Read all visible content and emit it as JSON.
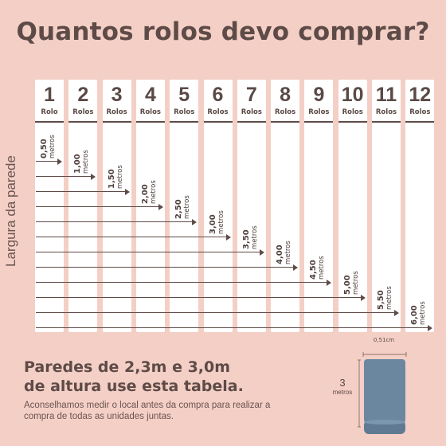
{
  "title": "Quantos rolos devo comprar?",
  "side_label": "Largura da parede",
  "columns": [
    {
      "num": "1",
      "unit": "Rolo"
    },
    {
      "num": "2",
      "unit": "Rolos"
    },
    {
      "num": "3",
      "unit": "Rolos"
    },
    {
      "num": "4",
      "unit": "Rolos"
    },
    {
      "num": "5",
      "unit": "Rolos"
    },
    {
      "num": "6",
      "unit": "Rolos"
    },
    {
      "num": "7",
      "unit": "Rolos"
    },
    {
      "num": "8",
      "unit": "Rolos"
    },
    {
      "num": "9",
      "unit": "Rolos"
    },
    {
      "num": "10",
      "unit": "Rolos"
    },
    {
      "num": "11",
      "unit": "Rolos"
    },
    {
      "num": "12",
      "unit": "Rolos"
    }
  ],
  "widths": [
    {
      "value": "0,50",
      "unit": "metros"
    },
    {
      "value": "1,00",
      "unit": "metros"
    },
    {
      "value": "1,50",
      "unit": "metros"
    },
    {
      "value": "2,00",
      "unit": "metros"
    },
    {
      "value": "2,50",
      "unit": "metros"
    },
    {
      "value": "3,00",
      "unit": "metros"
    },
    {
      "value": "3,50",
      "unit": "metros"
    },
    {
      "value": "4,00",
      "unit": "metros"
    },
    {
      "value": "4,50",
      "unit": "metros"
    },
    {
      "value": "5,00",
      "unit": "metros"
    },
    {
      "value": "5,50",
      "unit": "metros"
    },
    {
      "value": "6,00",
      "unit": "metros"
    }
  ],
  "bottom": {
    "heading_line1": "Paredes de 2,3m e 3,0m",
    "heading_line2": "de altura use esta tabela.",
    "note": "Aconselhamos medir o local antes da compra para realizar a compra de todas as unidades juntas."
  },
  "roll": {
    "width_label": "0,51cm",
    "height_value": "3",
    "height_unit": "metros",
    "color": "#6b87a0"
  }
}
